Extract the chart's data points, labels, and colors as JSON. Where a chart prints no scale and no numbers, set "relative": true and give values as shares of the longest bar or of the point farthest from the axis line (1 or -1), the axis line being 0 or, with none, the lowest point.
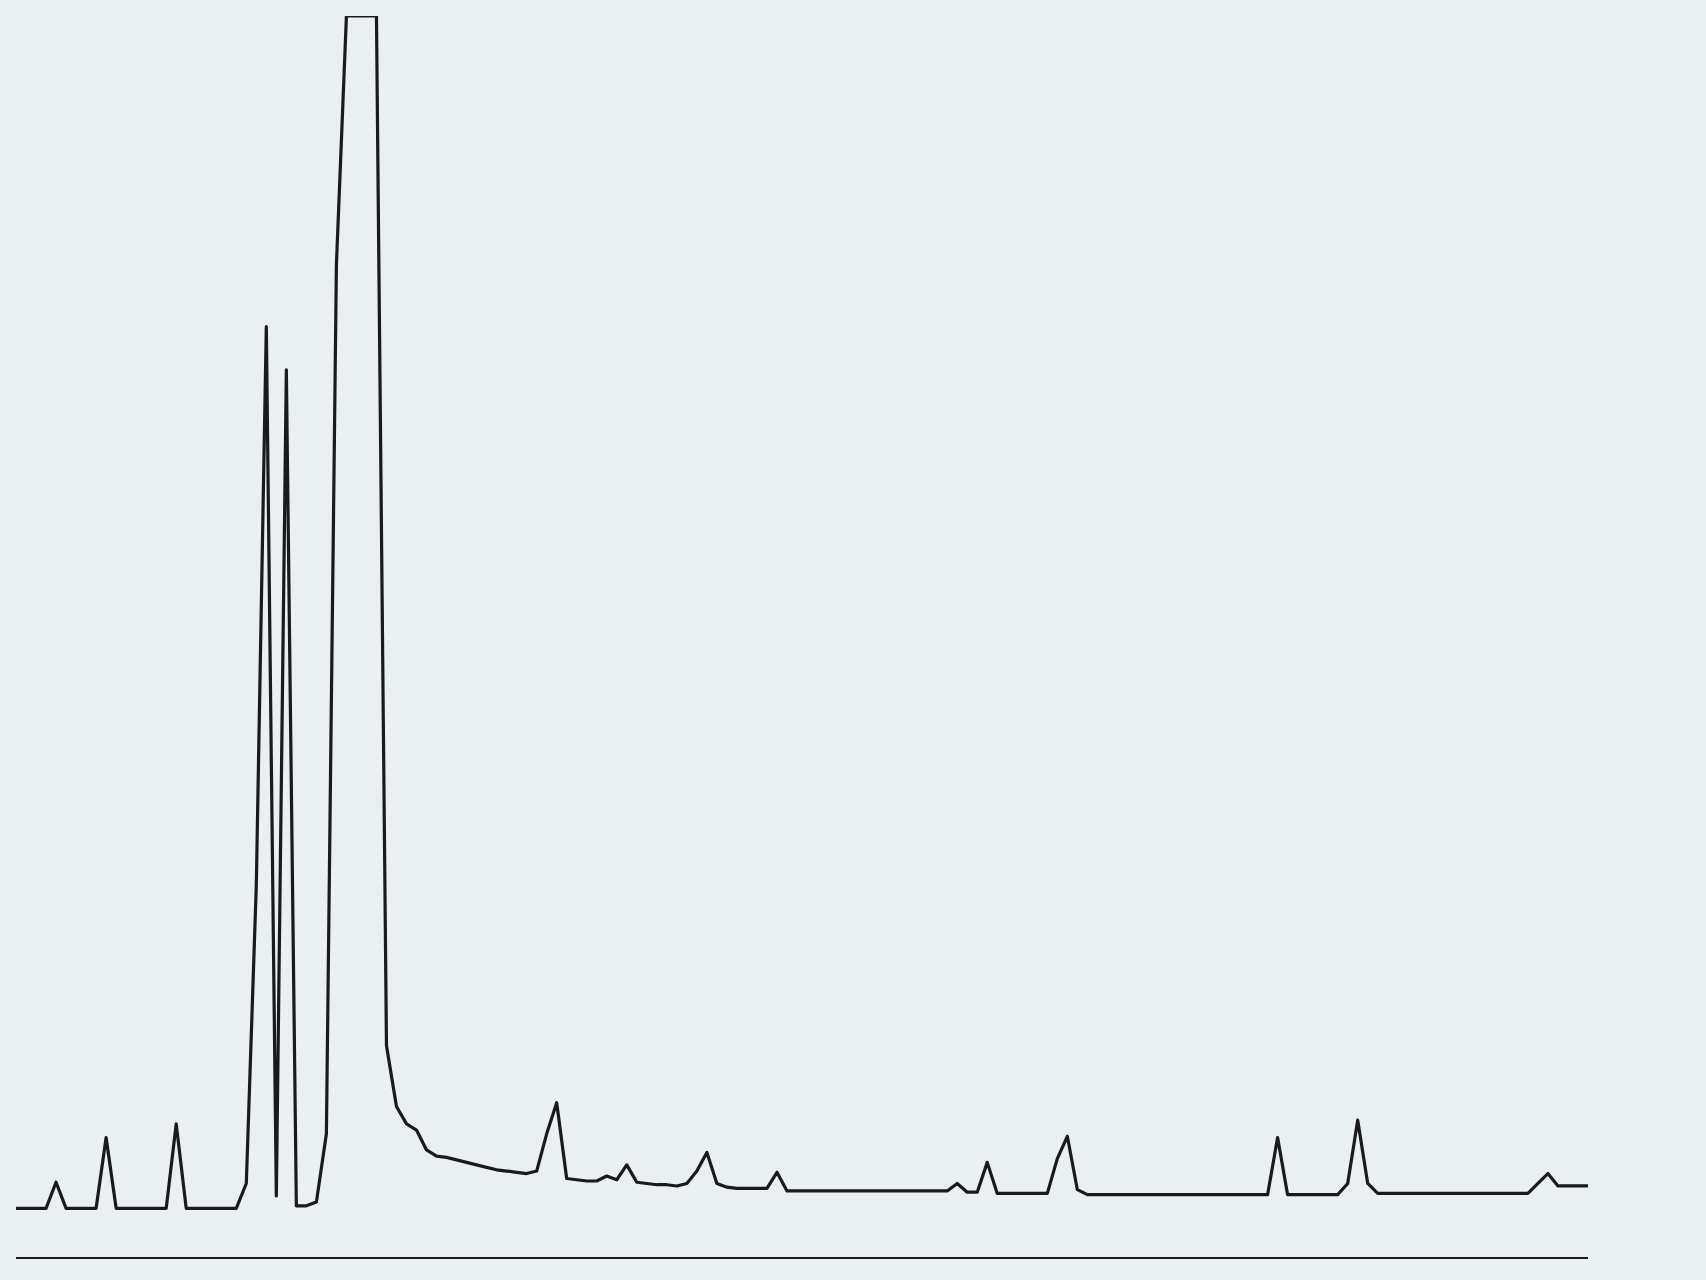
{
  "chart_data": {
    "type": "line",
    "relative": true,
    "color": "#1a1a1a",
    "marker": "none",
    "categories": [
      null,
      null,
      null,
      null,
      null,
      null,
      null,
      null,
      null,
      null,
      null,
      null,
      null,
      null,
      null,
      null,
      null,
      null,
      null,
      null,
      null,
      null,
      null,
      null,
      null,
      null,
      null,
      null,
      null,
      null,
      null,
      null,
      null,
      null,
      null,
      null,
      null,
      null,
      null,
      null,
      null,
      null,
      null,
      null,
      null,
      null,
      null,
      null,
      null,
      null,
      null,
      null,
      null,
      null,
      null,
      null,
      null,
      null,
      null,
      null,
      null,
      null,
      null,
      null,
      null,
      null,
      null,
      null,
      null,
      null,
      null,
      null,
      null,
      null,
      null,
      null,
      null,
      null,
      null,
      null,
      null,
      null,
      null,
      null,
      null,
      null,
      null,
      null,
      null,
      null,
      null,
      null,
      null,
      null,
      null,
      null,
      null,
      null,
      null,
      null,
      null,
      null,
      null,
      null,
      null,
      null,
      null,
      null,
      null,
      null,
      null,
      null,
      null,
      null,
      null,
      null,
      null,
      null,
      null,
      null,
      null,
      null,
      null,
      null,
      null,
      null,
      null,
      null,
      null,
      null,
      null,
      null,
      null,
      null,
      null,
      null,
      null,
      null,
      null,
      null,
      null,
      null,
      null,
      null,
      null,
      null,
      null,
      null,
      null,
      null,
      null,
      null,
      null,
      null,
      null,
      null,
      null,
      null
    ],
    "values": [
      0.04,
      0.04,
      0.04,
      0.04,
      0.061,
      0.04,
      0.04,
      0.04,
      0.04,
      0.097,
      0.04,
      0.04,
      0.04,
      0.04,
      0.04,
      0.04,
      0.108,
      0.04,
      0.04,
      0.04,
      0.04,
      0.04,
      0.04,
      0.06,
      0.3,
      0.75,
      0.05,
      0.715,
      0.042,
      0.042,
      0.045,
      0.1,
      0.8,
      1,
      1,
      1,
      1,
      0.171,
      0.122,
      0.108,
      0.103,
      0.087,
      0.082,
      0.081,
      0.079,
      0.077,
      0.075,
      0.073,
      0.071,
      0.07,
      0.069,
      0.068,
      0.07,
      0.1,
      0.125,
      0.064,
      0.063,
      0.062,
      0.062,
      0.066,
      0.063,
      0.075,
      0.061,
      0.06,
      0.059,
      0.059,
      0.058,
      0.06,
      0.07,
      0.085,
      0.06,
      0.057,
      0.056,
      0.056,
      0.056,
      0.056,
      0.069,
      0.054,
      0.054,
      0.054,
      0.054,
      0.054,
      0.054,
      0.054,
      0.054,
      0.054,
      0.054,
      0.054,
      0.054,
      0.054,
      0.054,
      0.054,
      0.054,
      0.054,
      0.06,
      0.053,
      0.053,
      0.077,
      0.052,
      0.052,
      0.052,
      0.052,
      0.052,
      0.052,
      0.08,
      0.098,
      0.055,
      0.051,
      0.051,
      0.051,
      0.051,
      0.051,
      0.051,
      0.051,
      0.051,
      0.051,
      0.051,
      0.051,
      0.051,
      0.051,
      0.051,
      0.051,
      0.051,
      0.051,
      0.051,
      0.051,
      0.097,
      0.051,
      0.051,
      0.051,
      0.051,
      0.051,
      0.051,
      0.06,
      0.111,
      0.06,
      0.052,
      0.052,
      0.052,
      0.052,
      0.052,
      0.052,
      0.052,
      0.052,
      0.052,
      0.052,
      0.052,
      0.052,
      0.052,
      0.052,
      0.052,
      0.052,
      0.06,
      0.068,
      0.058,
      0.058,
      0.058,
      0.058
    ]
  }
}
